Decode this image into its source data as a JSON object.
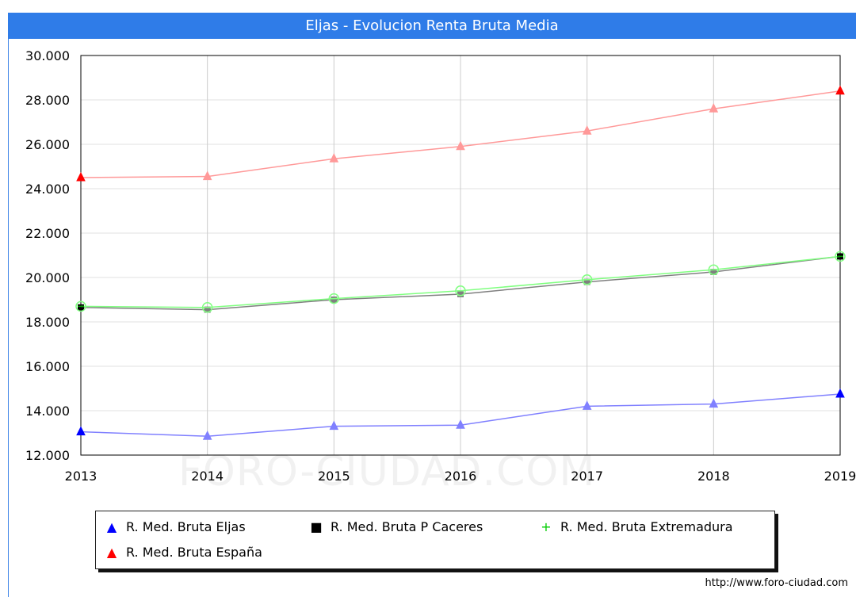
{
  "title": "Eljas - Evolucion Renta Bruta Media",
  "watermark": "FORO-CIUDAD.COM",
  "source": "http://www.foro-ciudad.com",
  "colors": {
    "title_bg": "#2f7ce8",
    "grid": "#d0d0d0"
  },
  "chart_data": {
    "type": "line",
    "title": "Eljas - Evolucion Renta Bruta Media",
    "x": [
      "2013",
      "2014",
      "2015",
      "2016",
      "2017",
      "2018",
      "2019"
    ],
    "ylim": [
      12000,
      30000
    ],
    "yticks": [
      "12.000",
      "14.000",
      "16.000",
      "18.000",
      "20.000",
      "22.000",
      "24.000",
      "26.000",
      "28.000",
      "30.000"
    ],
    "ytick_values": [
      12000,
      14000,
      16000,
      18000,
      20000,
      22000,
      24000,
      26000,
      28000,
      30000
    ],
    "grid": true,
    "legend_position": "bottom",
    "series": [
      {
        "name": "R. Med. Bruta Eljas",
        "color": "#8080ff",
        "marker_color": "#0000ff",
        "marker": "triangle",
        "values": [
          13050,
          12850,
          13300,
          13350,
          14200,
          14300,
          14750
        ]
      },
      {
        "name": "R. Med. Bruta P Caceres",
        "color": "#808080",
        "marker_color": "#000000",
        "marker": "square",
        "values": [
          18650,
          18550,
          19000,
          19250,
          19800,
          20250,
          20950
        ]
      },
      {
        "name": "R. Med. Bruta Extremadura",
        "color": "#80ff80",
        "marker_color": "#00ff00",
        "marker": "circle",
        "values": [
          18700,
          18650,
          19050,
          19400,
          19900,
          20350,
          20950
        ]
      },
      {
        "name": "R. Med. Bruta España",
        "color": "#ff9999",
        "marker_color": "#ff0000",
        "marker": "triangle",
        "values": [
          24500,
          24550,
          25350,
          25900,
          26600,
          27600,
          28400
        ]
      }
    ]
  }
}
